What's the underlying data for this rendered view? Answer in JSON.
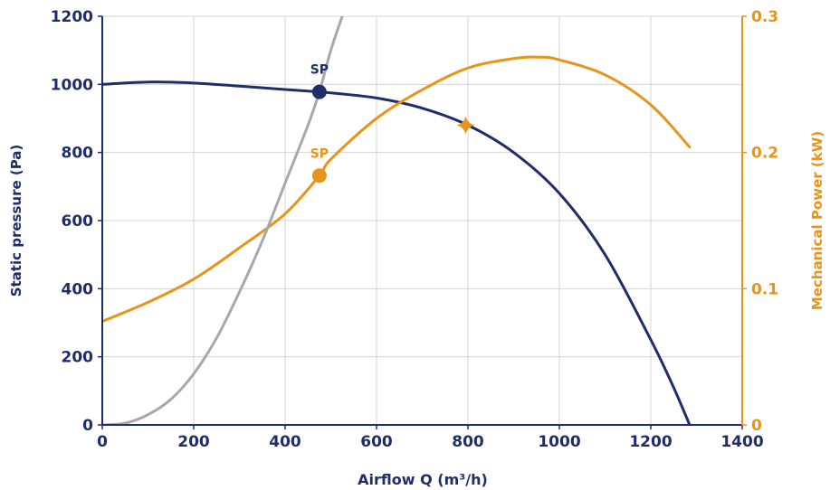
{
  "chart_data": {
    "type": "line",
    "title": "",
    "xlabel": "Airflow Q (m³/h)",
    "ylabel_left": "Static pressure (Pa)",
    "ylabel_right": "Mechanical Power (kW)",
    "xlim": [
      0,
      1400
    ],
    "ylim_left": [
      0,
      1200
    ],
    "ylim_right": [
      0,
      0.3
    ],
    "x_ticks": [
      "0",
      "200",
      "400",
      "600",
      "800",
      "1000",
      "1200",
      "1400"
    ],
    "y_left_ticks": [
      "0",
      "200",
      "400",
      "600",
      "800",
      "1000",
      "1200"
    ],
    "y_right_ticks": [
      "0",
      "0.1",
      "0.2",
      "0.3"
    ],
    "grid": true,
    "series": [
      {
        "axis": "left",
        "color": "#1f2d6b",
        "x": [
          0,
          100,
          200,
          300,
          400,
          475,
          500,
          600,
          700,
          800,
          900,
          1000,
          1100,
          1200,
          1250,
          1285
        ],
        "y": [
          1000,
          1007,
          1004,
          995,
          985,
          978,
          975,
          960,
          930,
          880,
          800,
          680,
          500,
          250,
          110,
          0
        ]
      },
      {
        "axis": "right",
        "color": "#e8941a",
        "x": [
          0,
          100,
          200,
          300,
          400,
          475,
          500,
          600,
          700,
          800,
          900,
          960,
          1000,
          1100,
          1200,
          1285
        ],
        "y": [
          0.076,
          0.09,
          0.107,
          0.13,
          0.155,
          0.183,
          0.195,
          0.225,
          0.246,
          0.262,
          0.269,
          0.27,
          0.268,
          0.257,
          0.235,
          0.204
        ]
      },
      {
        "axis": "left",
        "color": "#a8a8a8",
        "x": [
          0,
          50,
          100,
          150,
          200,
          250,
          300,
          350,
          400,
          450,
          475,
          500,
          525
        ],
        "y": [
          0,
          5,
          30,
          75,
          150,
          255,
          390,
          540,
          710,
          880,
          978,
          1100,
          1200
        ]
      }
    ],
    "annotations": [
      {
        "label": "SP",
        "x": 475,
        "y": 978,
        "axis": "left",
        "marker": "circle",
        "color": "#1f2d6b"
      },
      {
        "label": "SP",
        "x": 475,
        "y": 0.183,
        "axis": "right",
        "marker": "circle",
        "color": "#e8941a"
      },
      {
        "label": "",
        "x": 795,
        "y": 880,
        "axis": "left",
        "marker": "diamond",
        "color": "#e8941a"
      }
    ]
  }
}
